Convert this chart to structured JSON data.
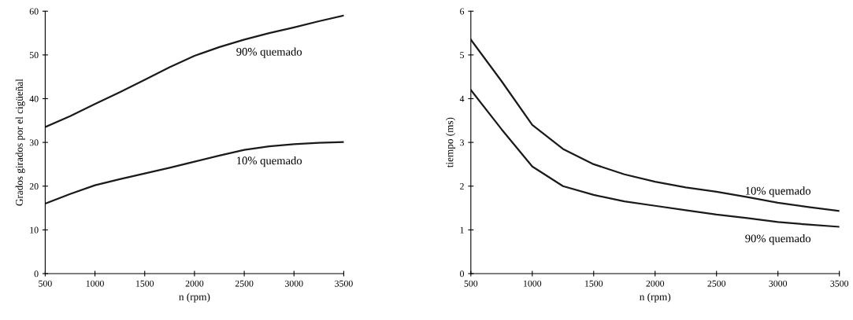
{
  "chart_data": [
    {
      "type": "line",
      "xlabel": "n (rpm)",
      "ylabel": "Grados girados por el cigüeñal",
      "x": [
        500,
        750,
        1000,
        1250,
        1500,
        1750,
        2000,
        2250,
        2500,
        2750,
        3000,
        3250,
        3500
      ],
      "series": [
        {
          "name": "90% quemado",
          "color": "#1a1a1a",
          "values": [
            33.5,
            36,
            38.8,
            41.5,
            44.3,
            47.2,
            49.8,
            51.8,
            53.5,
            55,
            56.3,
            57.7,
            59
          ]
        },
        {
          "name": "10% quemado",
          "color": "#1a1a1a",
          "values": [
            16,
            18.2,
            20.2,
            21.6,
            22.9,
            24.2,
            25.6,
            27,
            28.3,
            29.1,
            29.6,
            29.9,
            30.1
          ]
        }
      ],
      "xlim": [
        500,
        3500
      ],
      "xticks": [
        500,
        1000,
        1500,
        2000,
        2500,
        3000,
        3500
      ],
      "ylim": [
        0,
        60
      ],
      "yticks": [
        0,
        10,
        20,
        30,
        40,
        50,
        60
      ],
      "grid": false,
      "legend": false
    },
    {
      "type": "line",
      "xlabel": "n (rpm)",
      "ylabel": "tiempo (ms)",
      "x": [
        500,
        750,
        1000,
        1250,
        1500,
        1750,
        2000,
        2250,
        2500,
        2750,
        3000,
        3250,
        3500
      ],
      "series": [
        {
          "name": "10% quemado",
          "color": "#1a1a1a",
          "values": [
            5.35,
            4.4,
            3.4,
            2.85,
            2.5,
            2.27,
            2.1,
            1.97,
            1.87,
            1.75,
            1.62,
            1.52,
            1.43
          ]
        },
        {
          "name": "90% quemado",
          "color": "#1a1a1a",
          "values": [
            4.2,
            3.3,
            2.45,
            2.0,
            1.8,
            1.65,
            1.55,
            1.45,
            1.35,
            1.27,
            1.18,
            1.12,
            1.07
          ]
        }
      ],
      "xlim": [
        500,
        3500
      ],
      "xticks": [
        500,
        1000,
        1500,
        2000,
        2500,
        3000,
        3500
      ],
      "ylim": [
        0,
        6
      ],
      "yticks": [
        0,
        1,
        2,
        3,
        4,
        5,
        6
      ],
      "grid": false,
      "legend": false
    }
  ]
}
